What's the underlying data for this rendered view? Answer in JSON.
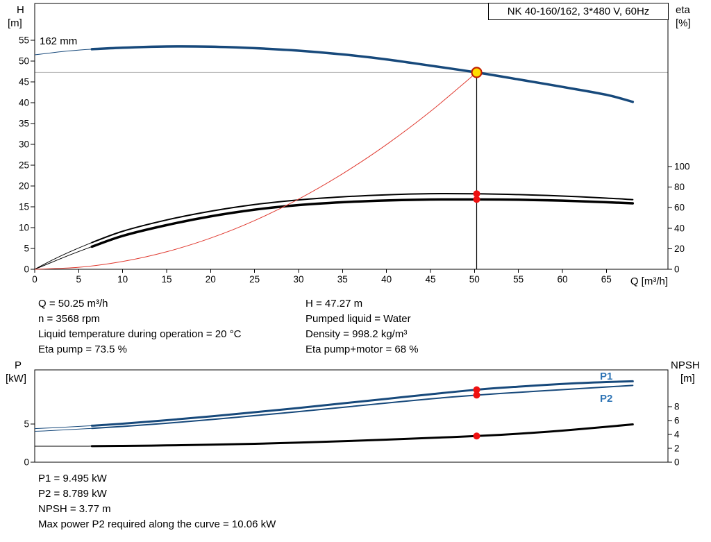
{
  "title": "NK 40-160/162, 3*480 V, 60Hz",
  "impeller_label": "162 mm",
  "axis_labels": {
    "h_title": "H",
    "h_unit": "[m]",
    "eta_title": "eta",
    "eta_unit": "[%]",
    "q_label": "Q [m³/h]",
    "p_title": "P",
    "p_unit": "[kW]",
    "npsh_title": "NPSH",
    "npsh_unit": "[m]"
  },
  "curve_labels": {
    "p1": "P1",
    "p2": "P2"
  },
  "results_top": {
    "left": [
      "Q = 50.25 m³/h",
      "n = 3568 rpm",
      "Liquid temperature during operation = 20 °C",
      "Eta pump = 73.5 %"
    ],
    "right": [
      "H = 47.27 m",
      "Pumped liquid = Water",
      "Density = 998.2 kg/m³",
      "Eta pump+motor = 68 %"
    ]
  },
  "results_bottom": [
    "P1 = 9.495 kW",
    "P2 = 8.789 kW",
    "NPSH = 3.77 m",
    "Max power P2 required along the curve = 10.06 kW"
  ],
  "colors": {
    "pump_blue": "#17497B",
    "label_blue": "#2E74B5",
    "red": "#E03A30",
    "black": "#000000",
    "dot_red": "#EE1111",
    "dot_yellow": "#FFDD00",
    "dot_ring": "#C22000",
    "ref_gray": "#B4B4B4"
  },
  "chart_data": [
    {
      "id": "qh-curve",
      "type": "line",
      "title": "NK 40-160/162, 3*480 V, 60Hz",
      "x_axis": {
        "label": "Q [m³/h]",
        "min": 0,
        "max": 72,
        "ticks": [
          0,
          5,
          10,
          15,
          20,
          25,
          30,
          35,
          40,
          45,
          50,
          55,
          60,
          65
        ]
      },
      "y_axis_left": {
        "label": "H [m]",
        "min": 0,
        "max": 63.8,
        "ticks": [
          0,
          5,
          10,
          15,
          20,
          25,
          30,
          35,
          40,
          45,
          50,
          55
        ]
      },
      "y_axis_right": {
        "label": "eta [%]",
        "min": 0,
        "max": 100,
        "ticks": [
          0,
          20,
          40,
          60,
          80,
          100
        ]
      },
      "operating_point": {
        "q": 50.25,
        "h": 47.27,
        "eta_pump": 73.5,
        "eta_pump_motor": 68
      },
      "series": [
        {
          "name": "pump-curve-162mm",
          "color": "pump_blue",
          "axis": "h",
          "width": 3.5,
          "thick_from": 6.5,
          "q": [
            0,
            2,
            4,
            6.5,
            10,
            15,
            20,
            25,
            30,
            35,
            40,
            45,
            50.25,
            55,
            60,
            65,
            68
          ],
          "v": [
            51.5,
            52,
            52.45,
            52.85,
            53.2,
            53.5,
            53.45,
            53.1,
            52.5,
            51.6,
            50.4,
            48.9,
            47.27,
            45.6,
            43.8,
            41.9,
            40.2
          ]
        },
        {
          "name": "eta-pump",
          "color": "black",
          "axis": "eta",
          "width": 2,
          "thick_from": 6.5,
          "q": [
            0,
            2,
            4,
            6.5,
            10,
            15,
            20,
            25,
            30,
            35,
            40,
            45,
            50.25,
            55,
            60,
            65,
            68
          ],
          "v": [
            0,
            9,
            17,
            26,
            37,
            48,
            56.5,
            63,
            67.5,
            70.5,
            72.5,
            73.6,
            73.5,
            72.7,
            71.3,
            69.3,
            67.8
          ]
        },
        {
          "name": "eta-pump-motor",
          "color": "black",
          "axis": "eta",
          "width": 3.5,
          "thick_from": 6.5,
          "q": [
            0,
            2,
            4,
            6.5,
            10,
            15,
            20,
            25,
            30,
            35,
            40,
            45,
            50.25,
            55,
            60,
            65,
            68
          ],
          "v": [
            0,
            7,
            14,
            22,
            32.5,
            43,
            51.5,
            58,
            62.5,
            65.3,
            67,
            67.9,
            68,
            67.7,
            66.8,
            65.3,
            64.2
          ]
        },
        {
          "name": "system-curve",
          "color": "red",
          "axis": "h",
          "width": 1,
          "q": [
            0,
            5,
            10,
            15,
            20,
            25,
            30,
            35,
            40,
            45,
            50.25
          ],
          "v": [
            0,
            0.47,
            1.87,
            4.21,
            7.49,
            11.7,
            16.85,
            22.93,
            29.95,
            37.91,
            47.27
          ]
        }
      ]
    },
    {
      "id": "power-npsh",
      "type": "line",
      "x_axis": {
        "label": "Q [m³/h]",
        "min": 0,
        "max": 72,
        "ticks": []
      },
      "y_axis_left": {
        "label": "P [kW]",
        "min": 0,
        "max": 12,
        "ticks": [
          0,
          5
        ]
      },
      "y_axis_right": {
        "label": "NPSH [m]",
        "min": 0,
        "max": 13,
        "ticks": [
          0,
          2,
          4,
          6,
          8
        ]
      },
      "operating_point": {
        "q": 50.25,
        "p1": 9.495,
        "p2": 8.789,
        "npsh": 3.77
      },
      "series": [
        {
          "name": "p1-power",
          "color": "pump_blue",
          "axis": "p",
          "width": 3,
          "thick_from": 6.5,
          "q": [
            0,
            2,
            4,
            6.5,
            10,
            15,
            20,
            25,
            30,
            35,
            40,
            45,
            50.25,
            55,
            60,
            65,
            68
          ],
          "v": [
            4.4,
            4.5,
            4.62,
            4.78,
            5.05,
            5.5,
            6,
            6.55,
            7.1,
            7.7,
            8.3,
            8.9,
            9.495,
            9.9,
            10.25,
            10.5,
            10.6
          ]
        },
        {
          "name": "p2-power",
          "color": "pump_blue",
          "axis": "p",
          "width": 2,
          "thick_from": 6.5,
          "q": [
            0,
            2,
            4,
            6.5,
            10,
            15,
            20,
            25,
            30,
            35,
            40,
            45,
            50.25,
            55,
            60,
            65,
            68
          ],
          "v": [
            4.05,
            4.15,
            4.27,
            4.43,
            4.68,
            5.1,
            5.58,
            6.1,
            6.62,
            7.18,
            7.75,
            8.3,
            8.789,
            9.15,
            9.5,
            9.85,
            10.06
          ]
        },
        {
          "name": "npsh-curve",
          "color": "black",
          "axis": "npsh",
          "width": 3,
          "thick_from": 6.5,
          "q": [
            0,
            5,
            6.5,
            10,
            15,
            20,
            25,
            30,
            35,
            40,
            45,
            50.25,
            55,
            60,
            65,
            68
          ],
          "v": [
            2.3,
            2.3,
            2.31,
            2.35,
            2.42,
            2.52,
            2.65,
            2.82,
            3.02,
            3.25,
            3.5,
            3.77,
            4.1,
            4.55,
            5.1,
            5.45
          ]
        }
      ]
    }
  ]
}
